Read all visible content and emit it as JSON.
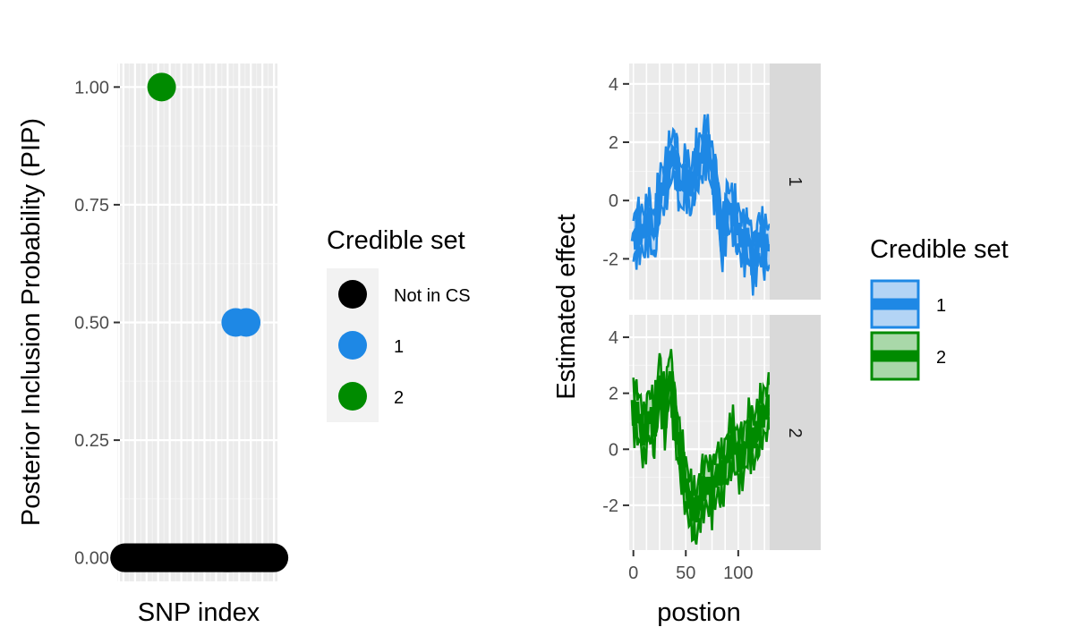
{
  "chart_data": [
    {
      "type": "scatter",
      "xlabel": "SNP index",
      "ylabel": "Posterior Inclusion Probability (PIP)",
      "ylim": [
        -0.05,
        1.05
      ],
      "xlim": [
        -3,
        133
      ],
      "yticks": [
        0.0,
        0.25,
        0.5,
        0.75,
        1.0
      ],
      "ytick_labels": [
        "0.00",
        "0.25",
        "0.50",
        "0.75",
        "1.00"
      ],
      "grid": true,
      "n_snps": 130,
      "legend": {
        "title": "Credible set",
        "placement": "right",
        "entries": [
          {
            "key": "none",
            "label": "Not in CS",
            "color": "#000000"
          },
          {
            "key": "1",
            "label": "1",
            "color": "#1e88e5"
          },
          {
            "key": "2",
            "label": "2",
            "color": "#008b00"
          }
        ]
      },
      "points": [
        {
          "x": 33,
          "y": 1.0,
          "set": "2"
        },
        {
          "x": 97,
          "y": 0.5,
          "set": "1"
        },
        {
          "x": 106,
          "y": 0.5,
          "set": "1"
        }
      ],
      "baseline_y": 0.0,
      "baseline_set": "none"
    },
    {
      "type": "line",
      "xlabel": "postion",
      "ylabel": "Estimated effect",
      "xlim": [
        -4,
        130
      ],
      "xticks": [
        0,
        50,
        100
      ],
      "xtick_labels": [
        "0",
        "50",
        "100"
      ],
      "grid": true,
      "facets": [
        {
          "strip": "1",
          "set": "1",
          "color": "#1e88e5",
          "fill": "#b3d4f5",
          "ylim": [
            -3.4,
            4.7
          ],
          "yticks": [
            -2,
            0,
            2,
            4
          ],
          "ytick_labels": [
            "-2",
            "0",
            "2",
            "4"
          ],
          "x": [
            0,
            5,
            10,
            15,
            20,
            25,
            30,
            35,
            40,
            45,
            50,
            55,
            60,
            65,
            70,
            75,
            80,
            85,
            90,
            95,
            100,
            105,
            110,
            115,
            120,
            125,
            130
          ],
          "y": [
            -1.4,
            -1.0,
            -1.1,
            -0.6,
            -1.3,
            0.3,
            0.5,
            1.4,
            1.6,
            0.3,
            0.9,
            0.3,
            1.2,
            1.5,
            2.0,
            1.1,
            0.2,
            -1.5,
            -0.2,
            -0.5,
            -1.0,
            -1.4,
            -1.3,
            -2.2,
            -1.2,
            -1.6,
            -1.5
          ],
          "band": 0.7
        },
        {
          "strip": "2",
          "set": "2",
          "color": "#008b00",
          "fill": "#a9d8a9",
          "ylim": [
            -3.6,
            4.8
          ],
          "yticks": [
            -2,
            0,
            2,
            4
          ],
          "ytick_labels": [
            "-2",
            "0",
            "2",
            "4"
          ],
          "x": [
            0,
            5,
            10,
            15,
            20,
            25,
            30,
            35,
            40,
            45,
            50,
            55,
            60,
            65,
            70,
            75,
            80,
            85,
            90,
            95,
            100,
            105,
            110,
            115,
            120,
            125,
            130
          ],
          "y": [
            1.5,
            1.2,
            0.4,
            1.3,
            0.8,
            2.5,
            1.2,
            2.8,
            1.0,
            -0.2,
            -1.3,
            -2.0,
            -2.4,
            -1.5,
            -1.2,
            -1.5,
            -0.8,
            -1.0,
            -0.2,
            0.3,
            -0.3,
            -0.2,
            0.6,
            0.3,
            0.9,
            1.3,
            1.5
          ],
          "band": 0.8
        }
      ],
      "legend": {
        "title": "Credible set",
        "placement": "right",
        "entries": [
          {
            "label": "1",
            "color": "#1e88e5",
            "fill": "#b3d4f5"
          },
          {
            "label": "2",
            "color": "#008b00",
            "fill": "#a9d8a9"
          }
        ]
      }
    }
  ]
}
